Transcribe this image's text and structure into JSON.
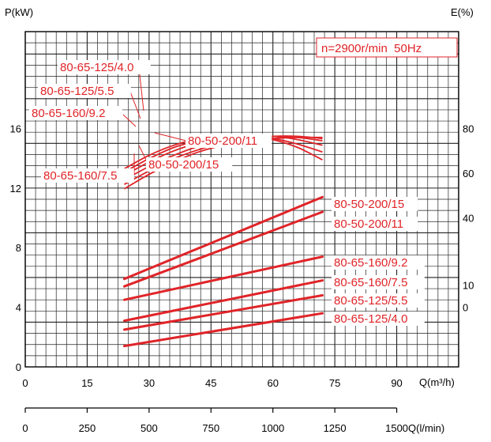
{
  "chart_data": {
    "type": "line",
    "y_left_label": "P(kW)",
    "y_right_label": "E(%)",
    "x_label": "Q(m³/h)",
    "x2_label": "Q(l/min)",
    "annotation": "n=2900r/min  50Hz",
    "x_ticks": [
      "0",
      "15",
      "30",
      "45",
      "60",
      "75",
      "90"
    ],
    "x2_ticks": [
      "0",
      "250",
      "500",
      "750",
      "1000",
      "1250",
      "1500"
    ],
    "y_left_ticks": [
      "0",
      "4",
      "8",
      "12",
      "16"
    ],
    "y_right_ticks": [
      "0",
      "10",
      "40",
      "60",
      "80"
    ],
    "x_range": [
      0,
      105
    ],
    "y_left_range": [
      0,
      22.5
    ],
    "colors": {
      "curve": "#e02428",
      "grid": "#222222",
      "axis": "#000000"
    },
    "power_series": [
      {
        "name": "80-50-200/15",
        "x": [
          24,
          72
        ],
        "y": [
          5.9,
          11.4
        ]
      },
      {
        "name": "80-50-200/11",
        "x": [
          24,
          72
        ],
        "y": [
          5.4,
          10.4
        ]
      },
      {
        "name": "80-65-160/9.2",
        "x": [
          24,
          72
        ],
        "y": [
          4.5,
          7.4
        ]
      },
      {
        "name": "80-65-160/7.5",
        "x": [
          24,
          72
        ],
        "y": [
          3.1,
          5.8
        ]
      },
      {
        "name": "80-65-125/5.5",
        "x": [
          24,
          72
        ],
        "y": [
          2.5,
          4.8
        ]
      },
      {
        "name": "80-65-125/4.0",
        "x": [
          24,
          72
        ],
        "y": [
          1.4,
          3.6
        ]
      }
    ],
    "efficiency_series": [
      {
        "name": "80-65-125/4.0",
        "x": [
          24,
          30,
          36,
          42,
          48,
          54,
          60,
          66,
          72
        ],
        "y": [
          62,
          68,
          72.5,
          75.5,
          77,
          76.5,
          75,
          71.5,
          66
        ]
      },
      {
        "name": "80-65-125/5.5",
        "x": [
          24,
          30,
          36,
          42,
          48,
          54,
          60,
          66,
          72
        ],
        "y": [
          60.5,
          66.5,
          71.5,
          74.5,
          76,
          76.5,
          75.5,
          73,
          69.5
        ]
      },
      {
        "name": "80-65-160/9.2",
        "x": [
          24,
          30,
          36,
          42,
          48,
          54,
          60,
          66,
          72
        ],
        "y": [
          59,
          65,
          70,
          73.5,
          75.5,
          76.5,
          76.5,
          75,
          72.5
        ]
      },
      {
        "name": "80-50-200/11",
        "x": [
          24,
          30,
          36,
          42,
          48,
          54,
          60,
          66,
          72
        ],
        "y": [
          57,
          63,
          68,
          72,
          74.5,
          76,
          76.5,
          76,
          74.5
        ]
      },
      {
        "name": "80-50-200/15",
        "x": [
          24,
          30,
          36,
          42,
          48,
          54,
          60,
          66,
          72
        ],
        "y": [
          55,
          61,
          66.5,
          70.5,
          73.5,
          75.5,
          76.5,
          76.5,
          75.5
        ]
      },
      {
        "name": "80-65-160/7.5",
        "x": [
          24,
          30,
          36,
          42,
          48,
          54,
          60,
          66,
          72
        ],
        "y": [
          53,
          59.5,
          65,
          69.5,
          72.5,
          74.5,
          75.5,
          76,
          76
        ]
      }
    ],
    "efficiency_callouts": [
      "80-65-125/4.0",
      "80-65-125/5.5",
      "80-65-160/9.2",
      "80-50-200/11",
      "80-50-200/15",
      "80-65-160/7.5"
    ]
  }
}
